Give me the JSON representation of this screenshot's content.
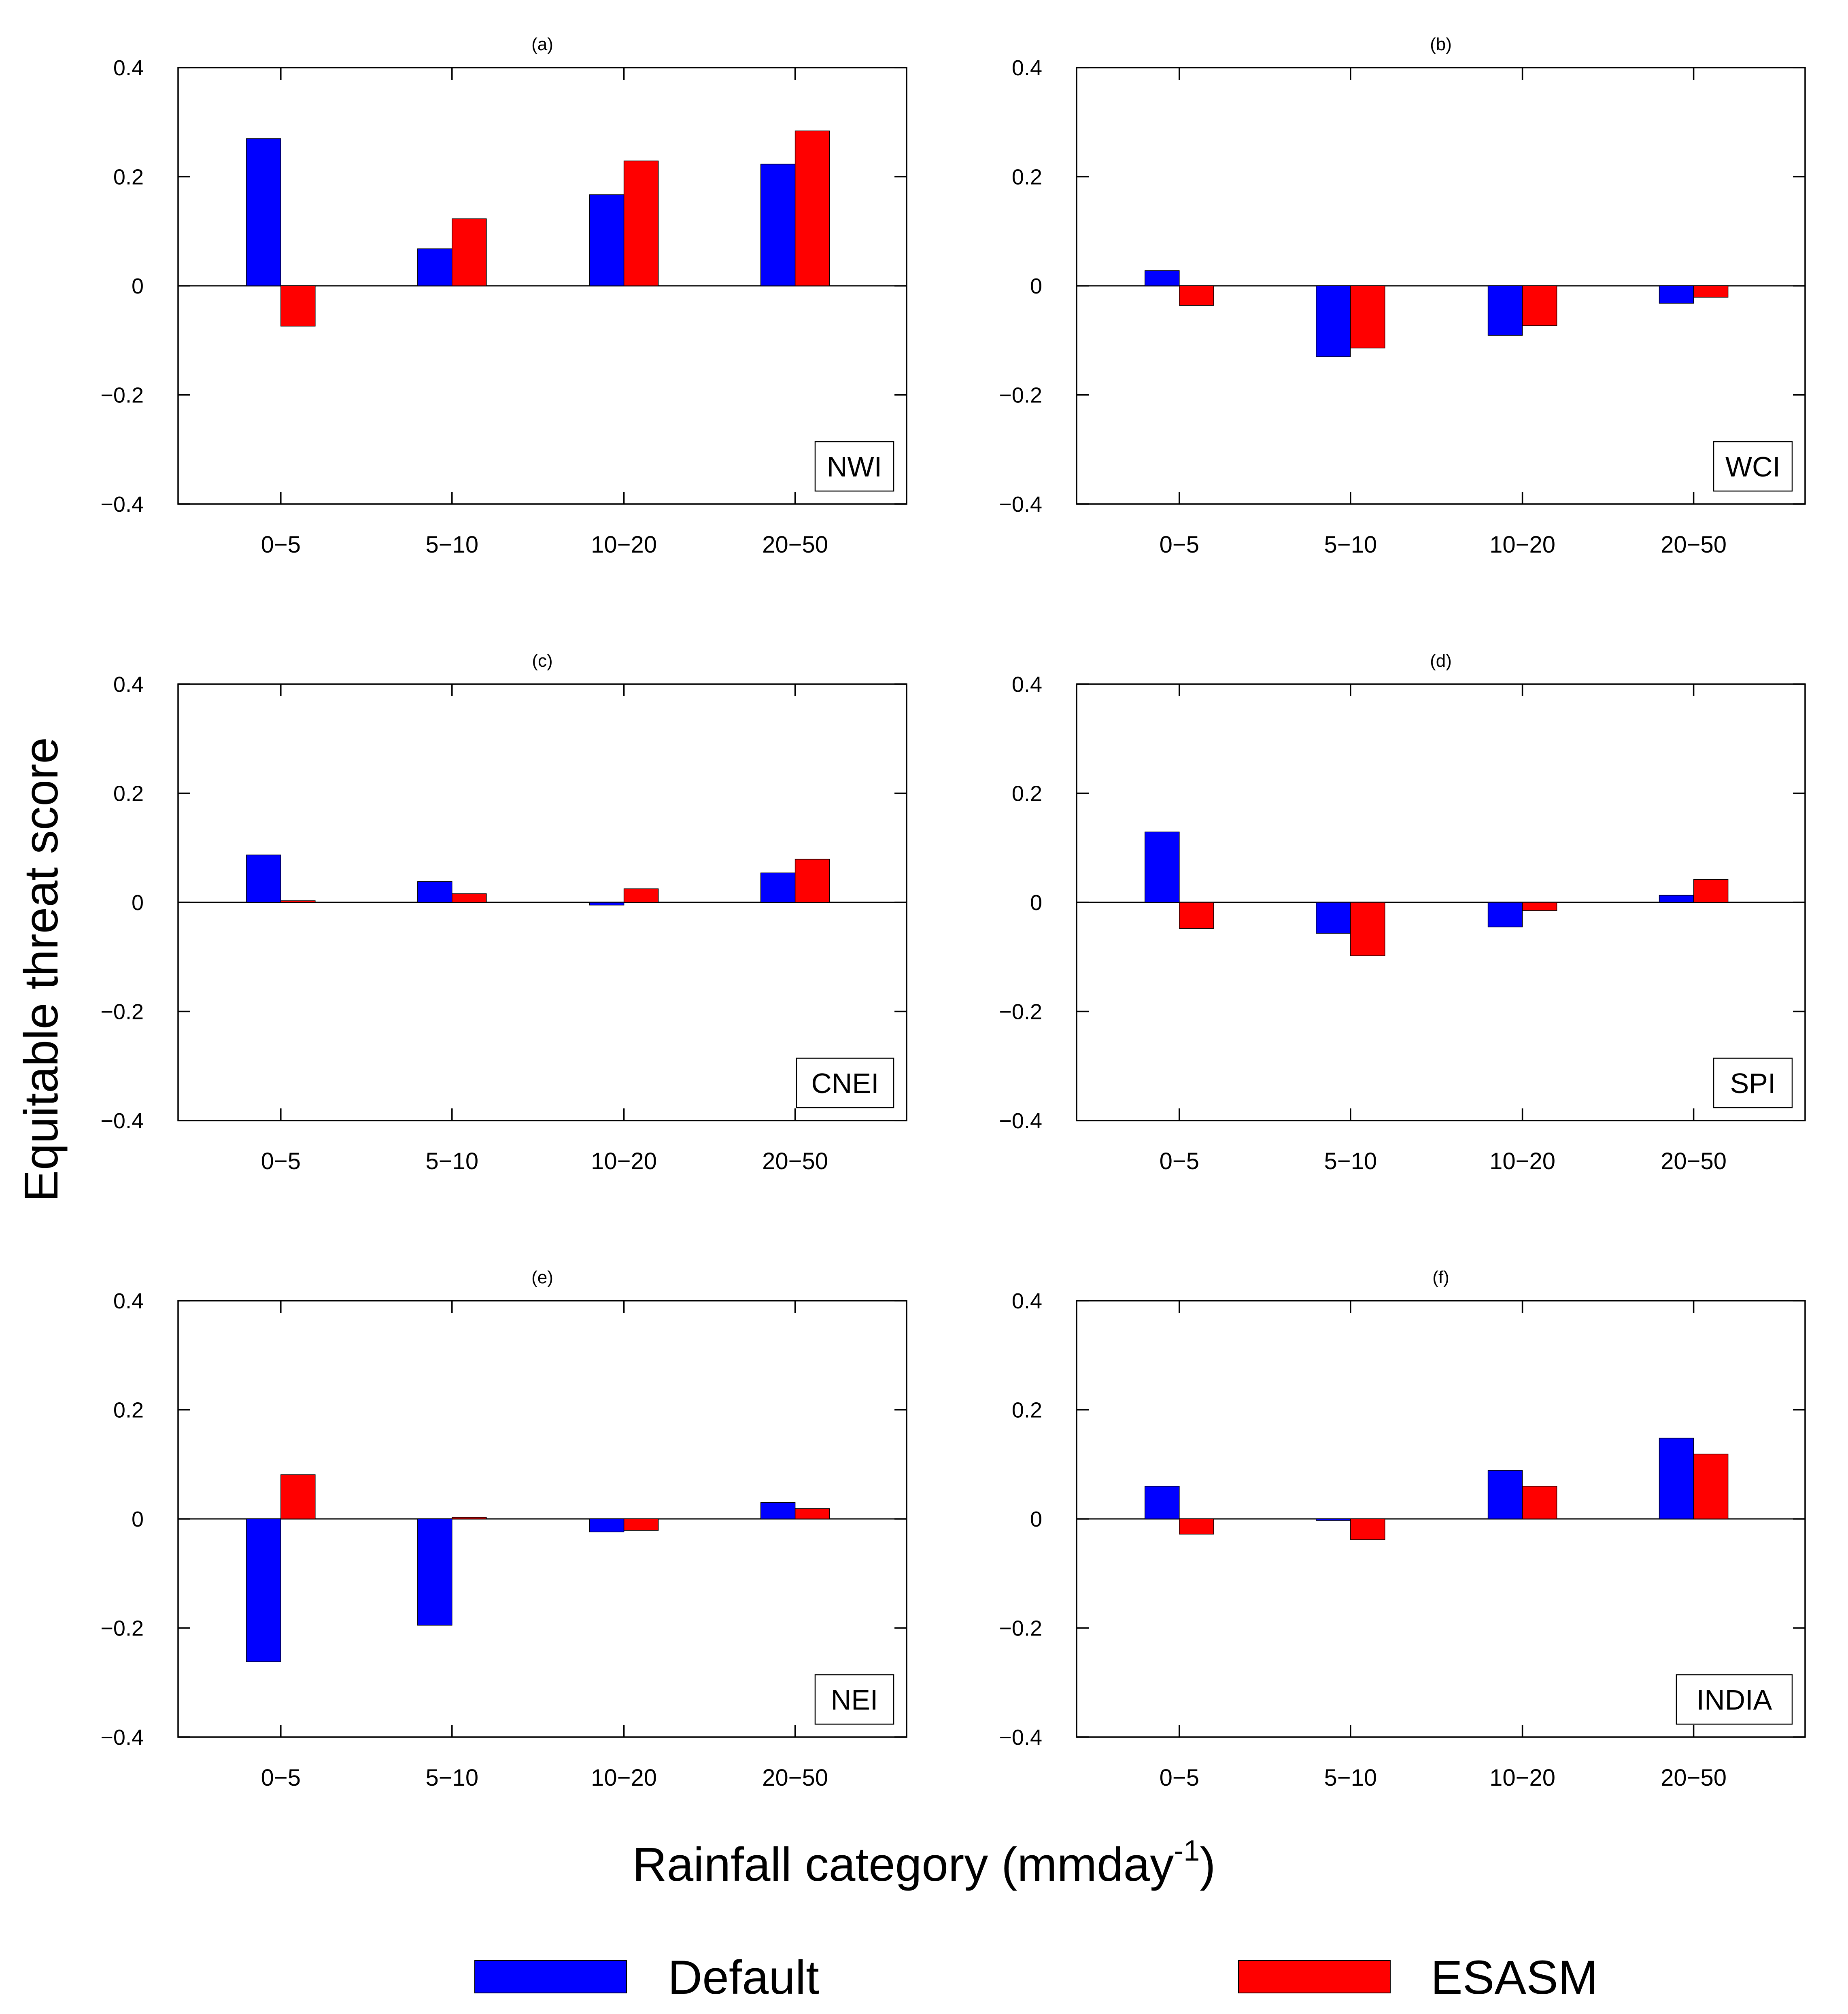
{
  "figure": {
    "ylabel": "Equitable threat score",
    "xlabel": {
      "main": "Rainfall category (mmday",
      "sup": "-1",
      "close": ")"
    },
    "legend": [
      {
        "name": "Default",
        "color": "#0000ff"
      },
      {
        "name": "ESASM",
        "color": "#ff0000"
      }
    ]
  },
  "chart_data": [
    {
      "type": "bar",
      "title": "(a)",
      "annotation": "NWI",
      "categories": [
        "0−5",
        "5−10",
        "10−20",
        "20−50"
      ],
      "ylim": [
        -0.4,
        0.4
      ],
      "yticks": [
        "0.4",
        "0.2",
        "0",
        "−0.2",
        "−0.4"
      ],
      "series": [
        {
          "name": "Default",
          "color": "#0000ff",
          "values": [
            0.27,
            0.068,
            0.167,
            0.223
          ]
        },
        {
          "name": "ESASM",
          "color": "#ff0000",
          "values": [
            -0.074,
            0.123,
            0.229,
            0.284
          ]
        }
      ]
    },
    {
      "type": "bar",
      "title": "(b)",
      "annotation": "WCI",
      "categories": [
        "0−5",
        "5−10",
        "10−20",
        "20−50"
      ],
      "ylim": [
        -0.4,
        0.4
      ],
      "yticks": [
        "0.4",
        "0.2",
        "0",
        "−0.2",
        "−0.4"
      ],
      "series": [
        {
          "name": "Default",
          "color": "#0000ff",
          "values": [
            0.028,
            -0.13,
            -0.091,
            -0.032
          ]
        },
        {
          "name": "ESASM",
          "color": "#ff0000",
          "values": [
            -0.036,
            -0.114,
            -0.073,
            -0.021
          ]
        }
      ]
    },
    {
      "type": "bar",
      "title": "(c)",
      "annotation": "CNEI",
      "categories": [
        "0−5",
        "5−10",
        "10−20",
        "20−50"
      ],
      "ylim": [
        -0.4,
        0.4
      ],
      "yticks": [
        "0.4",
        "0.2",
        "0",
        "−0.2",
        "−0.4"
      ],
      "series": [
        {
          "name": "Default",
          "color": "#0000ff",
          "values": [
            0.087,
            0.038,
            -0.005,
            0.054
          ]
        },
        {
          "name": "ESASM",
          "color": "#ff0000",
          "values": [
            0.003,
            0.016,
            0.025,
            0.079
          ]
        }
      ]
    },
    {
      "type": "bar",
      "title": "(d)",
      "annotation": "SPI",
      "categories": [
        "0−5",
        "5−10",
        "10−20",
        "20−50"
      ],
      "ylim": [
        -0.4,
        0.4
      ],
      "yticks": [
        "0.4",
        "0.2",
        "0",
        "−0.2",
        "−0.4"
      ],
      "series": [
        {
          "name": "Default",
          "color": "#0000ff",
          "values": [
            0.129,
            -0.057,
            -0.045,
            0.013
          ]
        },
        {
          "name": "ESASM",
          "color": "#ff0000",
          "values": [
            -0.048,
            -0.098,
            -0.015,
            0.042
          ]
        }
      ]
    },
    {
      "type": "bar",
      "title": "(e)",
      "annotation": "NEI",
      "categories": [
        "0−5",
        "5−10",
        "10−20",
        "20−50"
      ],
      "ylim": [
        -0.4,
        0.4
      ],
      "yticks": [
        "0.4",
        "0.2",
        "0",
        "−0.2",
        "−0.4"
      ],
      "series": [
        {
          "name": "Default",
          "color": "#0000ff",
          "values": [
            -0.262,
            -0.195,
            -0.024,
            0.03
          ]
        },
        {
          "name": "ESASM",
          "color": "#ff0000",
          "values": [
            0.081,
            0.003,
            -0.021,
            0.019
          ]
        }
      ]
    },
    {
      "type": "bar",
      "title": "(f)",
      "annotation": "INDIA",
      "categories": [
        "0−5",
        "5−10",
        "10−20",
        "20−50"
      ],
      "ylim": [
        -0.4,
        0.4
      ],
      "yticks": [
        "0.4",
        "0.2",
        "0",
        "−0.2",
        "−0.4"
      ],
      "series": [
        {
          "name": "Default",
          "color": "#0000ff",
          "values": [
            0.06,
            -0.003,
            0.089,
            0.148
          ]
        },
        {
          "name": "ESASM",
          "color": "#ff0000",
          "values": [
            -0.028,
            -0.038,
            0.06,
            0.119
          ]
        }
      ]
    }
  ]
}
